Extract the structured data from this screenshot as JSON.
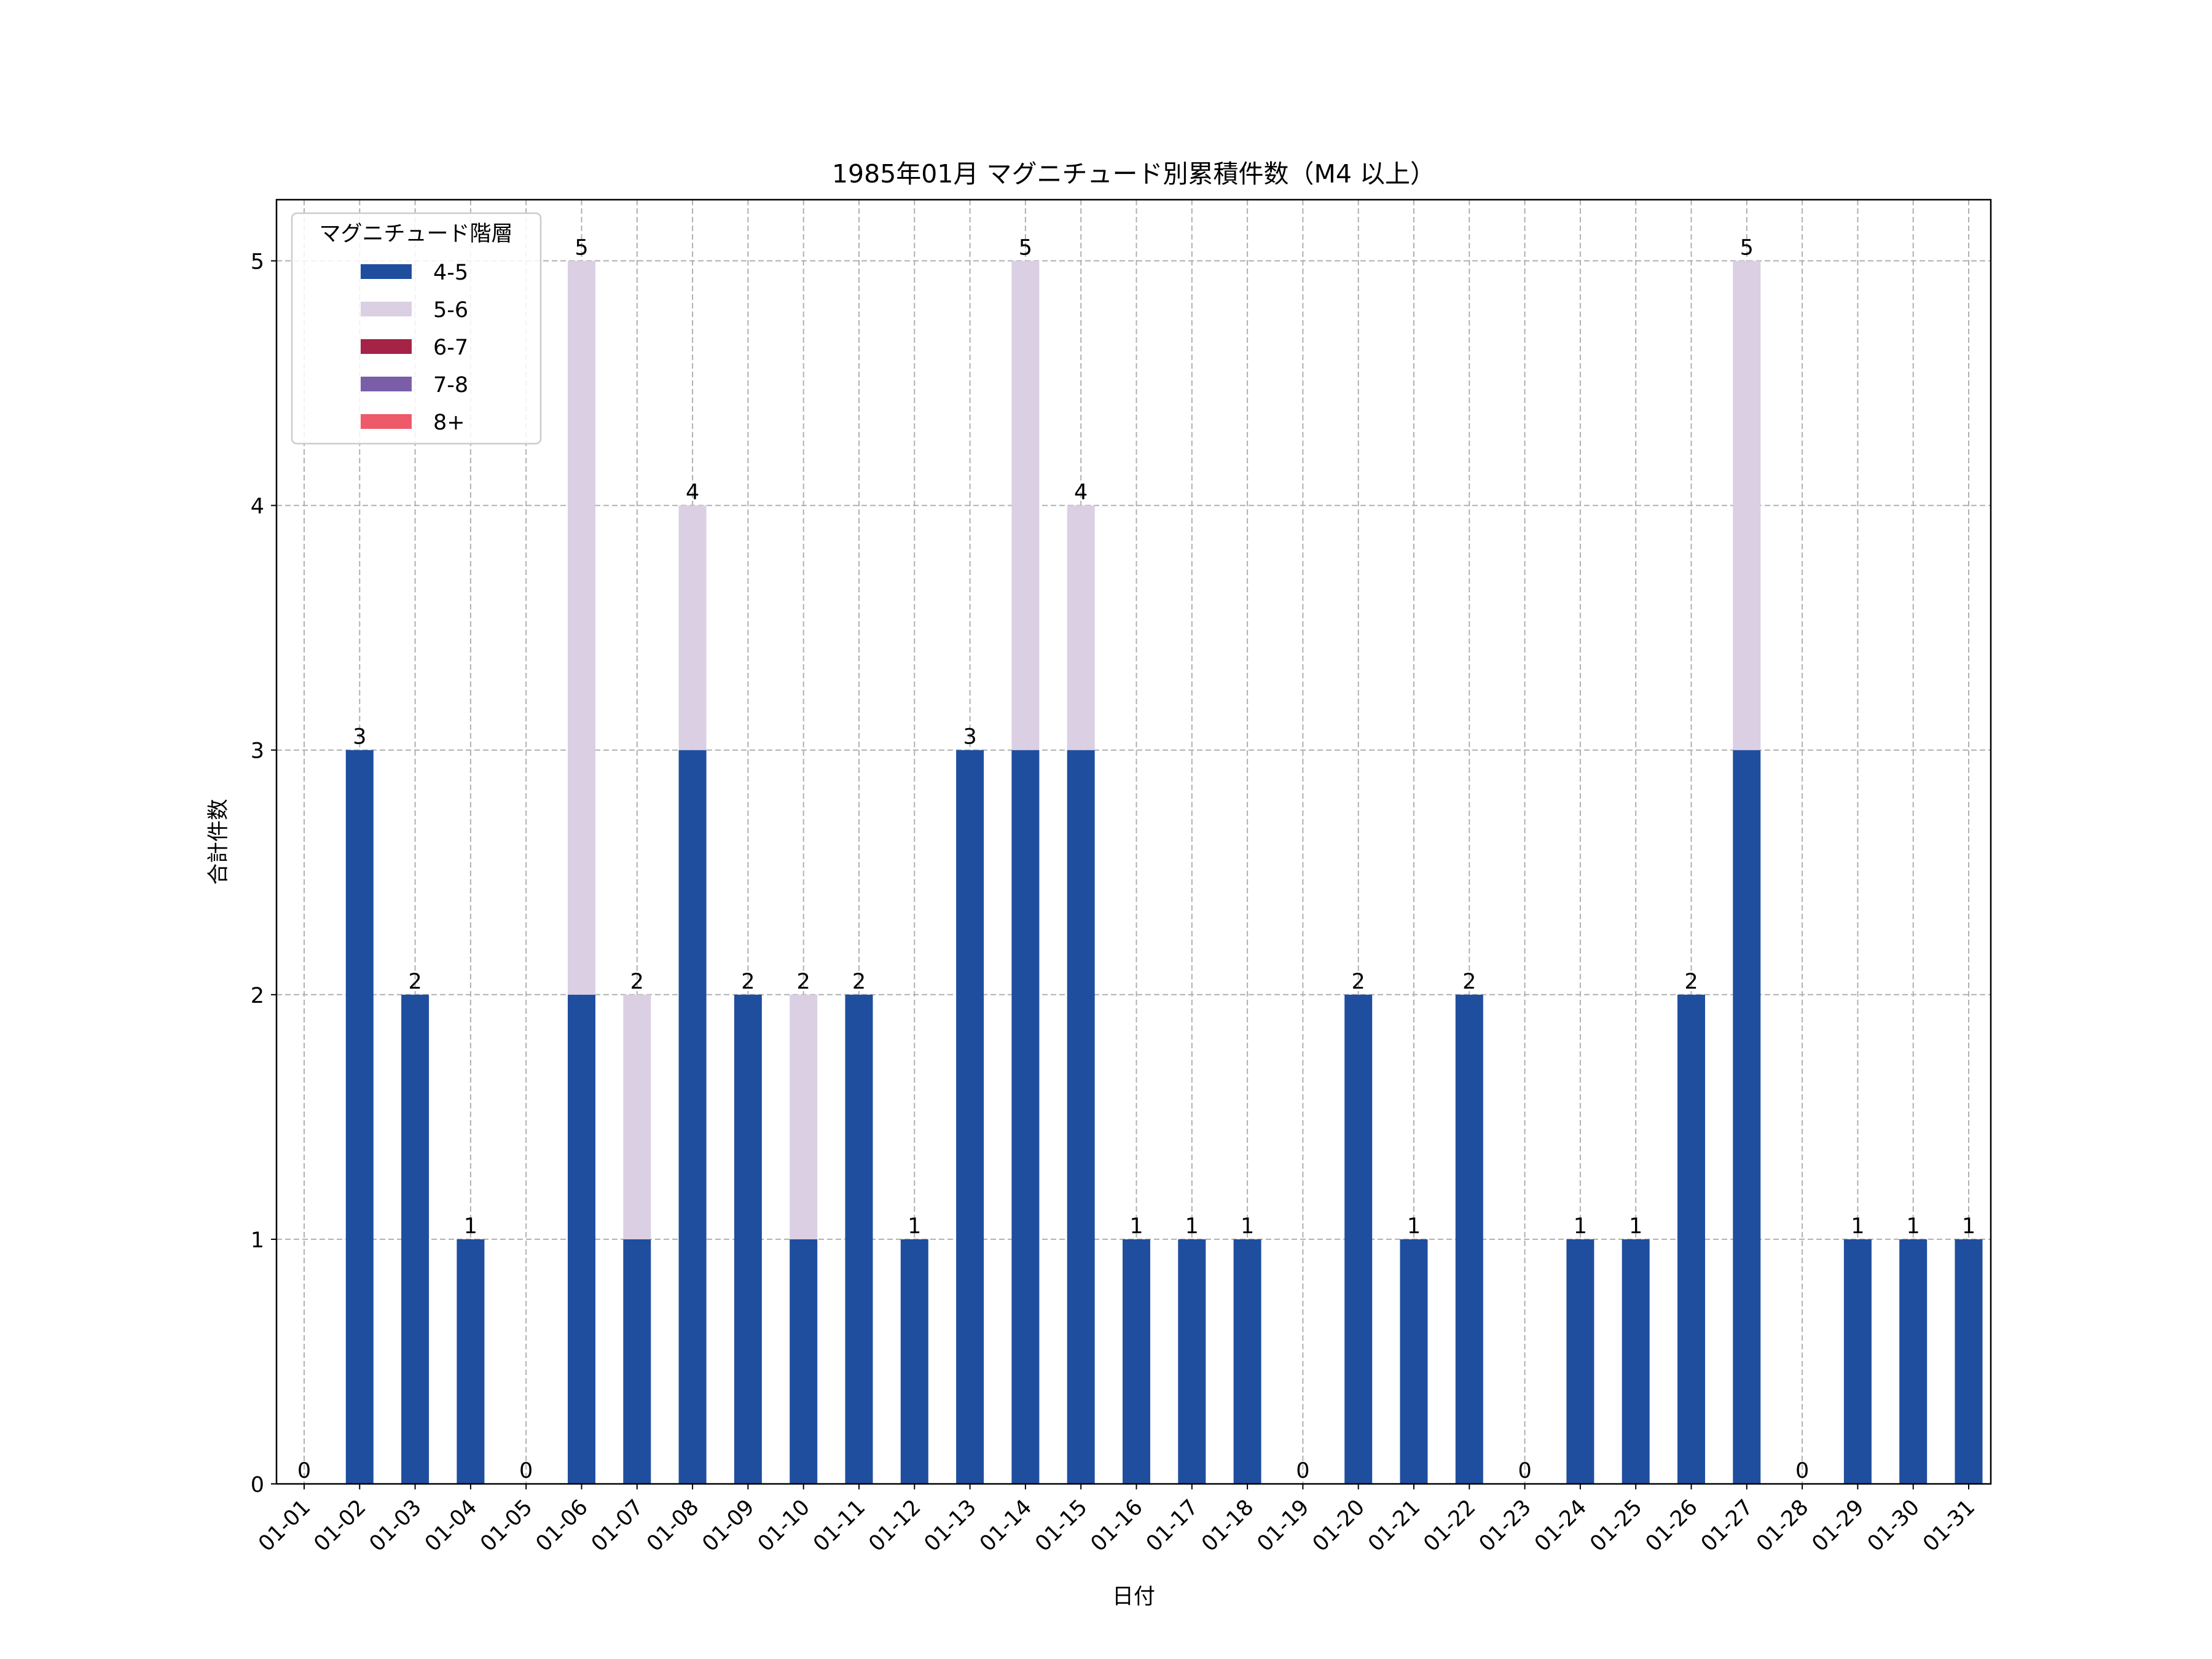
{
  "chart_data": {
    "type": "bar",
    "stacked": true,
    "title": "1985年01月 マグニチュード別累積件数（M4 以上）",
    "xlabel": "日付",
    "ylabel": "合計件数",
    "ylim": [
      0,
      5.25
    ],
    "yticks": [
      0,
      1,
      2,
      3,
      4,
      5
    ],
    "grid": true,
    "legend_title": "マグニチュード階層",
    "legend_position": "top-left",
    "categories": [
      "01-01",
      "01-02",
      "01-03",
      "01-04",
      "01-05",
      "01-06",
      "01-07",
      "01-08",
      "01-09",
      "01-10",
      "01-11",
      "01-12",
      "01-13",
      "01-14",
      "01-15",
      "01-16",
      "01-17",
      "01-18",
      "01-19",
      "01-20",
      "01-21",
      "01-22",
      "01-23",
      "01-24",
      "01-25",
      "01-26",
      "01-27",
      "01-28",
      "01-29",
      "01-30",
      "01-31"
    ],
    "series": [
      {
        "name": "4-5",
        "color": "#1f4e9e",
        "values": [
          0,
          3,
          2,
          1,
          0,
          2,
          1,
          3,
          2,
          1,
          2,
          1,
          3,
          3,
          3,
          1,
          1,
          1,
          0,
          2,
          1,
          2,
          0,
          1,
          1,
          2,
          3,
          0,
          1,
          1,
          1
        ]
      },
      {
        "name": "5-6",
        "color": "#dbcfe3",
        "values": [
          0,
          0,
          0,
          0,
          0,
          3,
          1,
          1,
          0,
          1,
          0,
          0,
          0,
          2,
          1,
          0,
          0,
          0,
          0,
          0,
          0,
          0,
          0,
          0,
          0,
          0,
          2,
          0,
          0,
          0,
          0
        ]
      },
      {
        "name": "6-7",
        "color": "#a52346",
        "values": [
          0,
          0,
          0,
          0,
          0,
          0,
          0,
          0,
          0,
          0,
          0,
          0,
          0,
          0,
          0,
          0,
          0,
          0,
          0,
          0,
          0,
          0,
          0,
          0,
          0,
          0,
          0,
          0,
          0,
          0,
          0
        ]
      },
      {
        "name": "7-8",
        "color": "#7a5fa8",
        "values": [
          0,
          0,
          0,
          0,
          0,
          0,
          0,
          0,
          0,
          0,
          0,
          0,
          0,
          0,
          0,
          0,
          0,
          0,
          0,
          0,
          0,
          0,
          0,
          0,
          0,
          0,
          0,
          0,
          0,
          0,
          0
        ]
      },
      {
        "name": "8+",
        "color": "#ee5a6a",
        "values": [
          0,
          0,
          0,
          0,
          0,
          0,
          0,
          0,
          0,
          0,
          0,
          0,
          0,
          0,
          0,
          0,
          0,
          0,
          0,
          0,
          0,
          0,
          0,
          0,
          0,
          0,
          0,
          0,
          0,
          0,
          0
        ]
      }
    ],
    "totals": [
      0,
      3,
      2,
      1,
      0,
      5,
      2,
      4,
      2,
      2,
      2,
      1,
      3,
      5,
      4,
      1,
      1,
      1,
      0,
      2,
      1,
      2,
      0,
      1,
      1,
      2,
      5,
      0,
      1,
      1,
      1
    ]
  }
}
